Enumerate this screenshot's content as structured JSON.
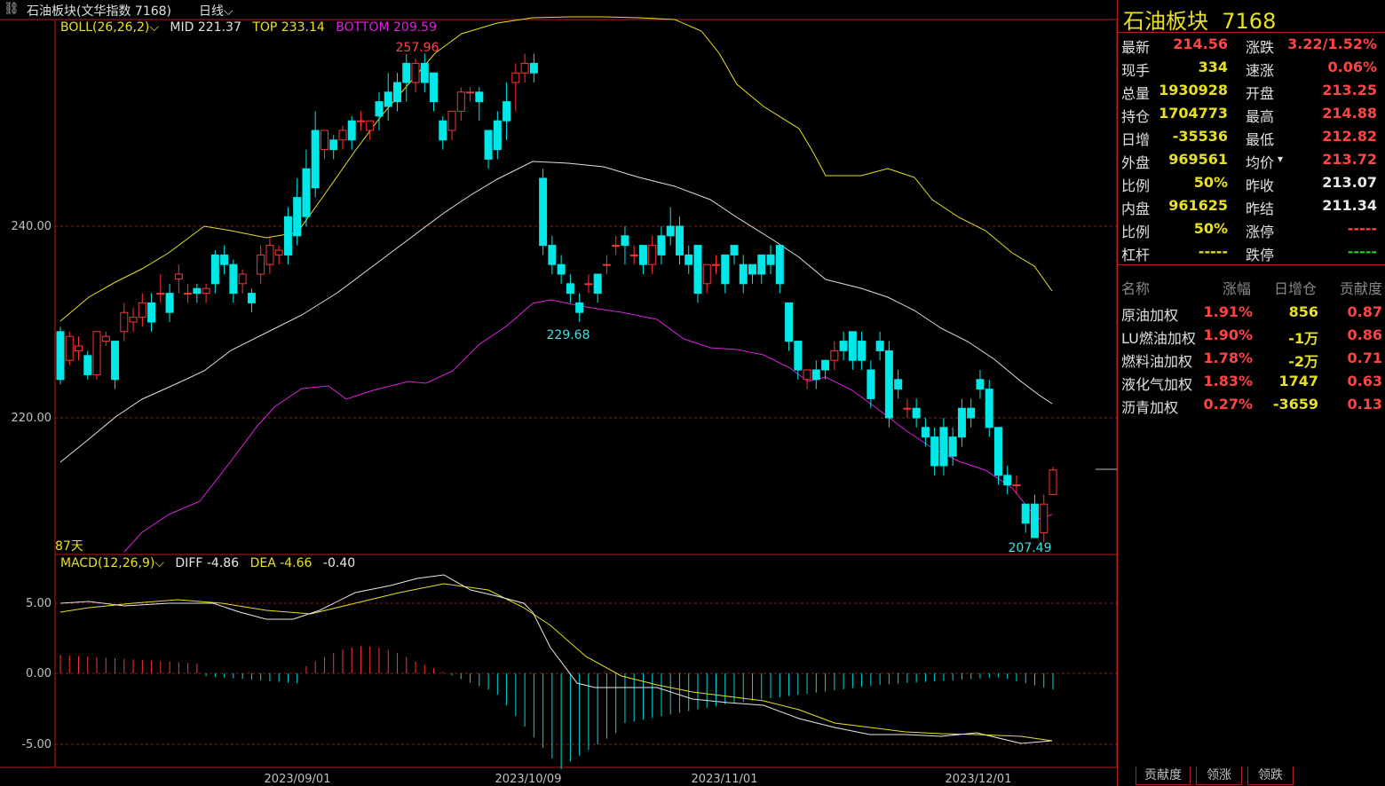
{
  "header": {
    "icon": "chain-link-icon",
    "name": "石油板块(文华指数 7168)",
    "period": "日线"
  },
  "boll_legend": {
    "title": "BOLL(26,26,2)",
    "mid": "MID 221.37",
    "top": "TOP 233.14",
    "bottom": "BOTTOM 209.59",
    "colors": {
      "mid": "#e0e0e0",
      "top": "#e8e020",
      "bottom": "#e020e0"
    }
  },
  "macd_legend": {
    "title": "MACD(12,26,9)",
    "diff": "DIFF -4.86",
    "dea": "DEA -4.66",
    "macd": "-0.40"
  },
  "annotations": {
    "high": "257.96",
    "mid_low": "229.68",
    "low": "207.49",
    "days": "87天"
  },
  "y_axis_main": [
    "240.00",
    "220.00"
  ],
  "y_axis_macd": [
    "5.00",
    "0.00",
    "-5.00"
  ],
  "x_axis": [
    "2023/09/01",
    "2023/10/09",
    "2023/11/01",
    "2023/12/01"
  ],
  "chart_data": {
    "type": "candlestick",
    "y_range_main": [
      207,
      262
    ],
    "candles": [
      [
        229,
        224,
        229.5,
        223.5
      ],
      [
        226,
        228.5,
        229,
        225.5
      ],
      [
        227,
        227.5,
        228.5,
        226
      ],
      [
        226.5,
        224.5,
        227,
        224
      ],
      [
        224.5,
        229,
        229,
        224
      ],
      [
        228,
        228.5,
        229,
        227.5
      ],
      [
        228,
        224,
        228,
        223
      ],
      [
        229,
        231,
        232,
        228
      ],
      [
        230,
        230.5,
        231.5,
        229
      ],
      [
        230.5,
        232,
        233,
        229.5
      ],
      [
        232,
        230,
        233,
        229
      ],
      [
        233,
        233,
        235,
        232
      ],
      [
        233,
        231,
        234,
        230
      ],
      [
        234.5,
        235,
        236,
        233
      ],
      [
        233,
        233,
        234,
        232
      ],
      [
        233.5,
        233,
        234,
        232
      ],
      [
        233,
        233.5,
        234,
        232
      ],
      [
        237,
        234,
        237.5,
        233
      ],
      [
        237,
        236,
        238,
        235
      ],
      [
        236,
        233,
        236.5,
        232
      ],
      [
        234,
        235,
        235.5,
        233
      ],
      [
        233,
        232,
        233.5,
        231
      ],
      [
        235,
        237,
        238,
        234
      ],
      [
        236,
        238,
        239,
        235
      ],
      [
        237,
        237.5,
        238,
        236
      ],
      [
        241,
        237,
        242,
        236
      ],
      [
        243,
        239,
        245,
        238
      ],
      [
        246,
        241,
        248,
        240
      ],
      [
        250,
        244,
        252,
        243
      ],
      [
        248,
        250,
        250,
        247
      ],
      [
        249,
        248,
        249.5,
        247
      ],
      [
        249,
        250,
        250.5,
        248
      ],
      [
        251,
        249,
        251.5,
        248
      ],
      [
        251,
        251,
        252,
        250
      ],
      [
        250,
        251,
        251,
        249
      ],
      [
        253,
        251.5,
        254,
        250
      ],
      [
        254,
        252.5,
        256,
        251
      ],
      [
        255,
        253,
        256,
        252
      ],
      [
        257,
        255,
        257.96,
        253
      ],
      [
        255,
        257,
        257.5,
        254
      ],
      [
        257,
        255,
        258,
        254
      ],
      [
        256,
        253,
        256,
        252
      ],
      [
        251,
        249,
        251.5,
        248
      ],
      [
        250,
        252,
        252,
        249
      ],
      [
        252,
        254,
        254.5,
        251
      ],
      [
        254,
        254,
        254.5,
        253
      ],
      [
        254,
        253,
        254.5,
        251
      ],
      [
        250,
        247,
        250,
        246
      ],
      [
        251,
        248,
        252,
        247
      ],
      [
        253,
        251,
        255,
        249
      ],
      [
        255,
        256,
        257,
        252
      ],
      [
        256,
        257,
        258,
        255
      ],
      [
        257,
        256,
        258,
        255
      ],
      [
        245,
        238,
        246,
        237
      ],
      [
        238,
        236,
        239,
        235
      ],
      [
        236,
        235,
        237,
        234
      ],
      [
        234,
        233,
        235,
        232
      ],
      [
        232,
        231,
        233,
        230
      ],
      [
        234,
        234,
        235,
        233
      ],
      [
        235,
        233,
        235,
        232
      ],
      [
        236,
        236,
        237,
        235
      ],
      [
        238,
        238,
        239,
        237
      ],
      [
        239,
        238,
        240,
        236
      ],
      [
        237,
        237,
        238,
        236
      ],
      [
        238,
        236,
        238,
        235
      ],
      [
        236,
        238,
        239,
        235
      ],
      [
        239,
        237,
        240,
        236
      ],
      [
        240,
        239,
        242,
        238
      ],
      [
        240,
        237,
        241,
        236
      ],
      [
        237,
        236,
        238,
        235
      ],
      [
        238,
        233,
        238,
        232
      ],
      [
        234,
        236,
        236,
        233
      ],
      [
        236,
        236,
        237,
        235
      ],
      [
        237,
        234,
        237,
        233
      ],
      [
        238,
        237,
        238,
        236
      ],
      [
        236,
        234,
        237,
        233
      ],
      [
        236,
        235,
        236,
        234
      ],
      [
        237,
        235,
        237,
        234
      ],
      [
        237,
        236,
        238,
        235
      ],
      [
        238,
        234,
        238,
        233
      ],
      [
        232,
        228,
        232,
        227
      ],
      [
        228,
        225,
        228,
        224
      ],
      [
        224,
        225,
        225,
        223
      ],
      [
        225,
        224,
        226,
        223
      ],
      [
        226,
        225,
        226,
        224
      ],
      [
        226,
        227,
        228,
        225
      ],
      [
        228,
        227,
        229,
        226
      ],
      [
        229,
        226,
        229,
        225
      ],
      [
        228,
        226,
        229,
        225
      ],
      [
        225,
        222,
        226,
        221
      ],
      [
        228,
        227,
        229,
        226
      ],
      [
        227,
        220,
        228,
        219
      ],
      [
        224,
        223,
        225,
        222
      ],
      [
        221,
        221,
        222,
        220
      ],
      [
        221,
        220,
        222,
        219
      ],
      [
        219,
        218,
        220,
        217
      ],
      [
        218,
        215,
        219,
        214
      ],
      [
        219,
        215,
        220,
        214
      ],
      [
        218,
        216,
        219,
        215
      ],
      [
        221,
        218,
        222,
        217
      ],
      [
        221,
        220,
        222,
        219
      ],
      [
        224,
        223,
        225,
        222
      ],
      [
        223,
        219,
        224,
        218
      ],
      [
        219,
        214,
        219,
        213
      ],
      [
        214,
        213,
        215,
        212
      ],
      [
        213,
        213,
        214,
        212
      ],
      [
        211,
        209,
        211,
        208
      ],
      [
        211,
        207.5,
        212,
        207.49
      ],
      [
        208,
        211,
        212,
        207
      ],
      [
        212,
        214.56,
        214.88,
        212
      ]
    ]
  }
}
